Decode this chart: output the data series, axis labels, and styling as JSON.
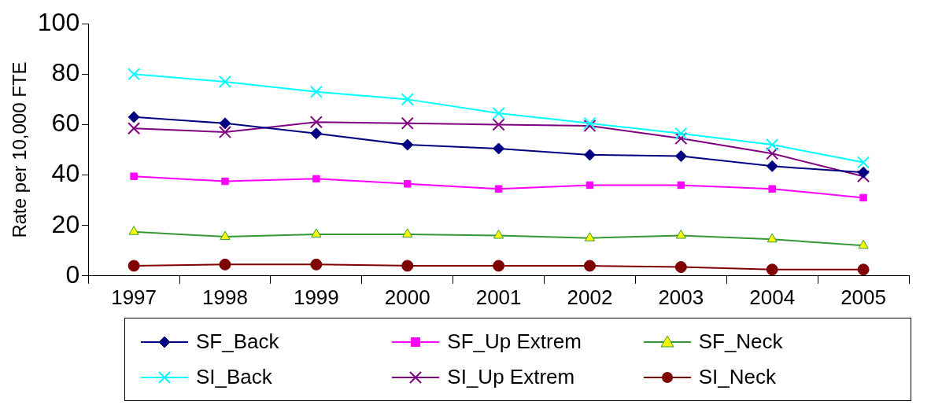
{
  "chart_data": {
    "type": "line",
    "ylabel": "Rate per 10,000 FTE",
    "categories": [
      "1997",
      "1998",
      "1999",
      "2000",
      "2001",
      "2002",
      "2003",
      "2004",
      "2005"
    ],
    "ylim": [
      0,
      100
    ],
    "yticks": [
      0,
      20,
      40,
      60,
      80,
      100
    ],
    "grid": false,
    "legend": "bottom",
    "series": [
      {
        "name": "SF_Back",
        "color": "#000080",
        "marker": "diamond",
        "values": [
          63,
          60.5,
          56.5,
          52,
          50.5,
          48,
          47.5,
          43.5,
          41
        ]
      },
      {
        "name": "SF_Up Extrem",
        "color": "#ff00ff",
        "marker": "square",
        "values": [
          39.5,
          37.5,
          38.5,
          36.5,
          34.5,
          36,
          36,
          34.5,
          31
        ]
      },
      {
        "name": "SF_Neck",
        "color": "#339933",
        "marker": "triangle",
        "values": [
          17.5,
          15.5,
          16.5,
          16.5,
          16,
          15,
          16,
          14.5,
          12
        ]
      },
      {
        "name": "SI_Back",
        "color": "#00ffff",
        "marker": "cross",
        "values": [
          80,
          77,
          73,
          70,
          64.5,
          60.5,
          56.5,
          52,
          45
        ]
      },
      {
        "name": "SI_Up Extrem",
        "color": "#800080",
        "marker": "cross",
        "values": [
          58.5,
          57,
          61,
          60.5,
          60,
          59.5,
          54.5,
          48.5,
          39.5
        ]
      },
      {
        "name": "SI_Neck",
        "color": "#800000",
        "marker": "circle",
        "values": [
          4,
          4.5,
          4.5,
          4,
          4,
          4,
          3.5,
          2.5,
          2.5
        ]
      }
    ]
  }
}
